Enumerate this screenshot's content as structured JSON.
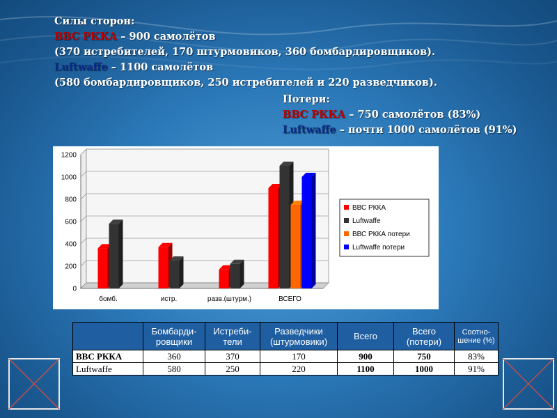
{
  "intro": {
    "heading": "Силы сторон:",
    "ru_label": "ВВС РККА",
    "ru_total": " – 900 самолётов",
    "ru_detail": "(370 истребителей, 170 штурмовиков, 360 бомбардировщиков).",
    "lw_label": "Luftwaffe",
    "lw_total": " – 1100 самолётов",
    "lw_detail": "(580 бомбардировщиков, 250 истребителей и 220 разведчиков)."
  },
  "losses": {
    "heading": "Потери:",
    "ru_label": "ВВС РККА",
    "ru_text": " – 750 самолётов (83%)",
    "lw_label": "Luftwaffe",
    "lw_text": " – почти 1000 самолётов (91%)"
  },
  "chart_data": {
    "type": "bar",
    "categories": [
      "бомб.",
      "истр.",
      "разв.(штурм.)",
      "ВСЕГО"
    ],
    "series": [
      {
        "name": "ВВС РККА",
        "color": "#ff0000",
        "values": [
          360,
          370,
          170,
          900
        ]
      },
      {
        "name": "Luftwaffe",
        "color": "#333333",
        "values": [
          580,
          250,
          220,
          1100
        ]
      },
      {
        "name": "ВВС РККА потери",
        "color": "#ff6600",
        "values": [
          null,
          null,
          null,
          750
        ]
      },
      {
        "name": "Luftwaffe потери",
        "color": "#0000ff",
        "values": [
          null,
          null,
          null,
          1000
        ]
      }
    ],
    "ylim": [
      0,
      1200
    ],
    "yticks": [
      "0",
      "200",
      "400",
      "600",
      "800",
      "1000",
      "1200"
    ],
    "grid": true,
    "legend_position": "right",
    "style": "3d"
  },
  "table": {
    "headers": [
      "",
      "Бомбарди-ровщики",
      "Истреби-тели",
      "Разведчики (штурмовики)",
      "Всего",
      "Всего (потери)",
      "Соотно-шение (%)"
    ],
    "rows": [
      {
        "label": "ВВС РККА",
        "cells": [
          "360",
          "370",
          "170",
          "900",
          "750",
          "83%"
        ]
      },
      {
        "label": "Luftwaffe",
        "cells": [
          "580",
          "250",
          "220",
          "1100",
          "1000",
          "91%"
        ]
      }
    ]
  },
  "colors": {
    "ru": "#c00000",
    "lw": "#0a2a8c",
    "table_header_bg": "#1f5fa1",
    "background": "#2b78b8"
  },
  "nav": {
    "prev_icon": "prev-slide-icon",
    "next_icon": "next-slide-icon"
  }
}
